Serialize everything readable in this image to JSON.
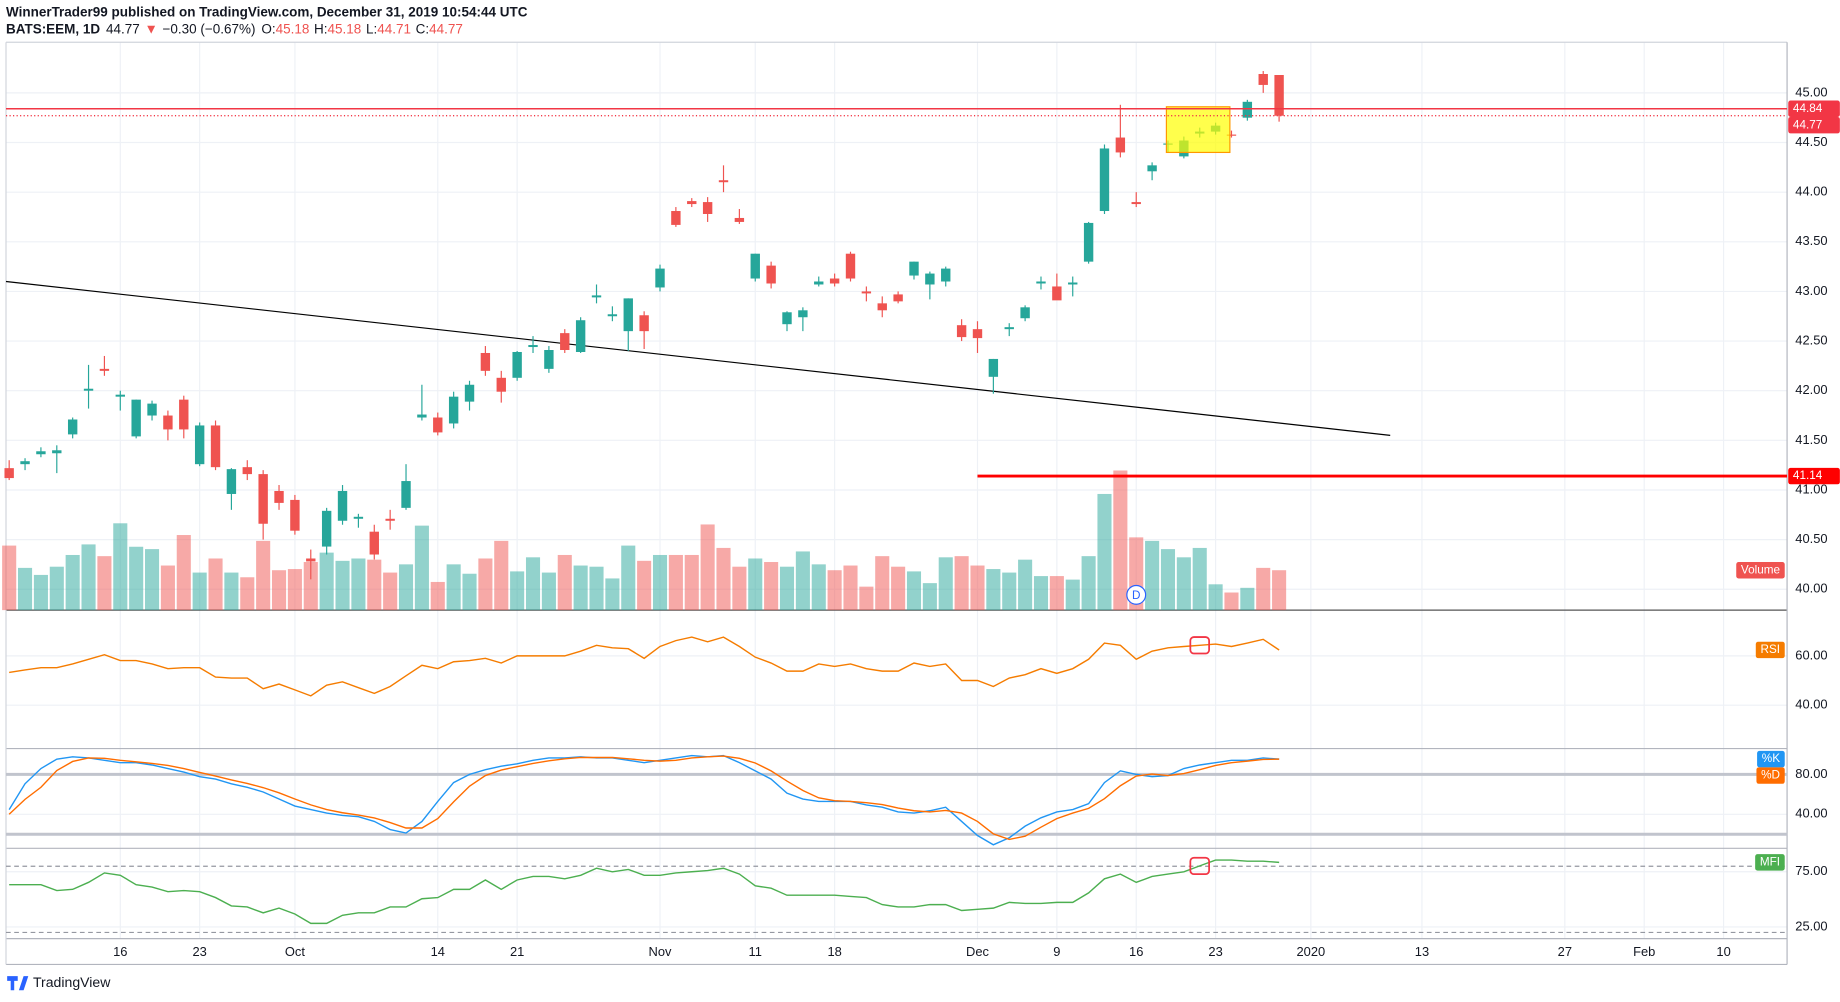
{
  "header": {
    "author": "WinnerTrader99 published on TradingView.com, December 31, 2019 10:54:44 UTC",
    "symbol": "BATS:EEM, 1D",
    "last": "44.77",
    "arrow": "▼",
    "change": "−0.30 (−0.67%)",
    "ohlc": [
      {
        "label": "O:",
        "value": "45.18"
      },
      {
        "label": "H:",
        "value": "45.18"
      },
      {
        "label": "L:",
        "value": "44.71"
      },
      {
        "label": "C:",
        "value": "44.77"
      }
    ]
  },
  "footer": {
    "logo": "TradingView"
  },
  "chart_data": [
    {
      "type": "candlestick",
      "up_color": "#26a69a",
      "down_color": "#ef5350",
      "open": [
        41.22,
        41.26,
        41.36,
        41.37,
        41.56,
        42.0,
        42.22,
        41.94,
        41.54,
        41.75,
        41.75,
        41.91,
        41.26,
        41.65,
        40.96,
        41.23,
        41.16,
        40.99,
        40.9,
        40.31,
        40.43,
        40.69,
        40.71,
        40.58,
        40.71,
        40.82,
        41.73,
        41.73,
        41.67,
        41.89,
        42.38,
        42.13,
        42.13,
        42.44,
        42.22,
        42.58,
        42.39,
        42.94,
        42.75,
        42.6,
        42.76,
        43.04,
        43.81,
        43.91,
        43.9,
        44.12,
        43.74,
        43.13,
        43.26,
        42.67,
        42.74,
        43.07,
        43.13,
        43.38,
        43.0,
        42.88,
        42.97,
        43.16,
        43.07,
        43.1,
        42.66,
        42.62,
        42.14,
        42.62,
        42.73,
        43.08,
        43.05,
        43.07,
        43.3,
        43.81,
        44.55,
        43.9,
        44.21,
        44.48,
        44.36,
        44.59,
        44.61,
        44.58,
        44.75,
        45.19,
        45.18
      ],
      "high": [
        41.3,
        41.32,
        41.43,
        41.45,
        41.73,
        42.26,
        42.35,
        42.0,
        41.91,
        41.9,
        41.8,
        41.95,
        41.68,
        41.7,
        41.22,
        41.3,
        41.2,
        41.05,
        40.95,
        40.4,
        40.82,
        41.05,
        40.76,
        40.65,
        40.8,
        41.26,
        42.06,
        41.78,
        41.99,
        42.1,
        42.45,
        42.2,
        42.4,
        42.55,
        42.45,
        42.62,
        42.74,
        43.07,
        42.85,
        42.93,
        42.8,
        43.27,
        43.85,
        43.94,
        43.95,
        44.27,
        43.83,
        43.38,
        43.3,
        42.8,
        42.84,
        43.15,
        43.18,
        43.4,
        43.05,
        42.95,
        43.0,
        43.3,
        43.2,
        43.25,
        42.72,
        42.7,
        42.32,
        42.68,
        42.86,
        43.15,
        43.18,
        43.15,
        43.7,
        44.48,
        44.88,
        44.0,
        44.3,
        44.52,
        44.56,
        44.65,
        44.7,
        44.62,
        44.93,
        45.22,
        45.18
      ],
      "low": [
        41.1,
        41.2,
        41.33,
        41.17,
        41.52,
        41.82,
        42.15,
        41.8,
        41.52,
        41.7,
        41.5,
        41.52,
        41.24,
        41.2,
        40.8,
        41.1,
        40.5,
        40.8,
        40.55,
        40.1,
        40.35,
        40.65,
        40.62,
        40.3,
        40.6,
        40.8,
        41.7,
        41.55,
        41.62,
        41.8,
        42.15,
        41.88,
        42.1,
        42.38,
        42.18,
        42.38,
        42.38,
        42.88,
        42.7,
        42.4,
        42.42,
        43.0,
        43.65,
        43.85,
        43.7,
        44.0,
        43.68,
        43.1,
        43.03,
        42.6,
        42.6,
        43.05,
        43.05,
        43.1,
        42.9,
        42.74,
        42.88,
        43.12,
        42.92,
        43.05,
        42.5,
        42.38,
        41.97,
        42.55,
        42.7,
        43.02,
        42.92,
        42.95,
        43.28,
        43.78,
        44.35,
        43.85,
        44.12,
        44.4,
        44.34,
        44.55,
        44.58,
        44.55,
        44.72,
        45.0,
        44.71
      ],
      "close": [
        41.12,
        41.29,
        41.39,
        41.4,
        41.71,
        42.02,
        42.2,
        41.96,
        41.91,
        41.87,
        41.61,
        41.61,
        41.65,
        41.23,
        41.21,
        41.16,
        40.66,
        40.87,
        40.59,
        40.28,
        40.79,
        40.99,
        40.73,
        40.35,
        40.69,
        41.09,
        41.76,
        41.58,
        41.94,
        42.06,
        42.2,
        41.99,
        42.39,
        42.46,
        42.41,
        42.41,
        42.71,
        42.96,
        42.77,
        42.93,
        42.6,
        43.23,
        43.67,
        43.88,
        43.78,
        44.1,
        43.7,
        43.38,
        43.08,
        42.79,
        42.81,
        43.1,
        43.08,
        43.13,
        42.98,
        42.81,
        42.9,
        43.3,
        43.18,
        43.23,
        42.54,
        42.53,
        42.32,
        42.64,
        42.84,
        43.1,
        42.91,
        43.09,
        43.69,
        44.44,
        44.4,
        43.88,
        44.27,
        44.49,
        44.52,
        44.61,
        44.67,
        44.57,
        44.91,
        45.08,
        44.77
      ],
      "xlim": [
        -0.2,
        112
      ],
      "xticks": [
        {
          "value": 7,
          "label": "16"
        },
        {
          "value": 12,
          "label": "23"
        },
        {
          "value": 18,
          "label": "Oct"
        },
        {
          "value": 27,
          "label": "14"
        },
        {
          "value": 32,
          "label": "21"
        },
        {
          "value": 41,
          "label": "Nov"
        },
        {
          "value": 47,
          "label": "11"
        },
        {
          "value": 52,
          "label": "18"
        },
        {
          "value": 61,
          "label": "Dec"
        },
        {
          "value": 66,
          "label": "9"
        },
        {
          "value": 71,
          "label": "16"
        },
        {
          "value": 76,
          "label": "23"
        },
        {
          "value": 82,
          "label": "2020"
        },
        {
          "value": 89,
          "label": "13"
        },
        {
          "value": 98,
          "label": "27"
        },
        {
          "value": 103,
          "label": "Feb"
        },
        {
          "value": 108,
          "label": "10"
        }
      ],
      "ylim": [
        39.79,
        45.51
      ],
      "yticks": [
        {
          "value": 40,
          "label": "40.00"
        },
        {
          "value": 40.5,
          "label": "40.50"
        },
        {
          "value": 41,
          "label": "41.00"
        },
        {
          "value": 41.5,
          "label": "41.50"
        },
        {
          "value": 42,
          "label": "42.00"
        },
        {
          "value": 42.5,
          "label": "42.50"
        },
        {
          "value": 43,
          "label": "43.00"
        },
        {
          "value": 43.5,
          "label": "43.50"
        },
        {
          "value": 44,
          "label": "44.00"
        },
        {
          "value": 44.5,
          "label": "44.50"
        },
        {
          "value": 45,
          "label": "45.00"
        }
      ],
      "hlines": [
        {
          "value": 44.84,
          "color": "#f23645",
          "style": "solid"
        },
        {
          "value": 44.77,
          "color": "#f23645",
          "style": "dotted"
        },
        {
          "value": 41.14,
          "color": "#ff0000",
          "style": "thick",
          "from": 61
        }
      ],
      "trendline": {
        "x": [
          -0.2,
          87
        ],
        "y": [
          43.1,
          41.55
        ],
        "color": "#000000"
      },
      "box": {
        "x": [
          72.9,
          76.9
        ],
        "y": [
          44.86,
          44.4
        ],
        "fill": "#ffff00",
        "stroke": "#ff9800"
      },
      "events": [
        {
          "x": 71,
          "label": "D"
        }
      ]
    },
    {
      "type": "bar",
      "up_color": "#26a69a",
      "down_color": "#ef5350",
      "ylim": [
        0,
        400
      ],
      "series": [
        {
          "name": "Volume",
          "values": [
            55,
            36,
            30,
            37,
            47,
            56,
            46,
            74,
            54,
            52,
            38,
            64,
            32,
            44,
            32,
            28,
            59,
            34,
            35,
            41,
            49,
            42,
            44,
            43,
            32,
            39,
            72,
            24,
            39,
            31,
            44,
            59,
            33,
            45,
            32,
            47,
            38,
            37,
            27,
            55,
            42,
            47,
            47,
            47,
            73,
            53,
            37,
            44,
            41,
            37,
            50,
            39,
            34,
            38,
            20,
            46,
            37,
            33,
            23,
            45,
            46,
            38,
            35,
            32,
            43,
            29,
            29,
            26,
            46,
            99,
            119,
            62,
            59,
            52,
            45,
            53,
            22,
            15,
            19,
            36,
            34
          ]
        }
      ]
    },
    {
      "type": "line",
      "ylim": [
        22.9,
        77.6
      ],
      "yticks": [
        {
          "value": 60,
          "label": "60.00"
        },
        {
          "value": 40,
          "label": "40.00"
        }
      ],
      "series": [
        {
          "name": "RSI",
          "color": "#f57c00",
          "values": [
            53.3,
            54.3,
            55.2,
            55.2,
            56.7,
            58.6,
            60.5,
            58.1,
            58.1,
            56.7,
            54.8,
            55.2,
            55.2,
            51.4,
            51.0,
            51.0,
            46.7,
            48.6,
            46.2,
            43.8,
            48.1,
            49.5,
            47.1,
            44.8,
            47.6,
            51.9,
            56.2,
            54.8,
            57.6,
            58.1,
            59.0,
            57.1,
            60,
            60,
            60,
            60,
            61.9,
            64.3,
            63.3,
            62.9,
            59.0,
            63.8,
            66.2,
            67.6,
            65.7,
            67.6,
            63.8,
            59.5,
            57.1,
            53.8,
            53.8,
            56.7,
            55.7,
            56.7,
            54.8,
            53.8,
            53.8,
            57.1,
            55.7,
            56.7,
            50,
            50,
            47.6,
            51,
            52.4,
            54.8,
            52.9,
            54.8,
            58.6,
            65.2,
            64.3,
            58.6,
            61.9,
            63.3,
            63.8,
            64.3,
            64.8,
            63.8,
            65.2,
            66.7,
            62.4
          ]
        }
      ],
      "marker": {
        "x": 75,
        "y": 64.3,
        "color": "#f23645"
      }
    },
    {
      "type": "line",
      "ylim": [
        7.1,
        104.7
      ],
      "yticks": [
        {
          "value": 80,
          "label": "80.00"
        },
        {
          "value": 40,
          "label": "40.00"
        }
      ],
      "bands": [
        80,
        20
      ],
      "series": [
        {
          "name": "%K",
          "color": "#2196f3",
          "values": [
            44.7,
            70.6,
            85.9,
            95.3,
            97.6,
            96.5,
            94.1,
            91.8,
            91.8,
            89.4,
            85.9,
            82.4,
            77.6,
            75.3,
            70.6,
            67.1,
            62.4,
            55.3,
            48.2,
            44.7,
            41.2,
            38.8,
            37.6,
            32.9,
            24.7,
            21.2,
            32.9,
            52.9,
            71.8,
            80,
            84.7,
            88.2,
            90.6,
            94.1,
            96.5,
            96.5,
            97.6,
            96.5,
            96.5,
            94.1,
            91.8,
            94.1,
            96.5,
            98.8,
            97.6,
            98.8,
            91.8,
            83.5,
            75.3,
            61.2,
            55.3,
            52.9,
            52.9,
            52.9,
            49.4,
            47.1,
            42.4,
            41.2,
            43.5,
            47.1,
            32.9,
            18.8,
            9.4,
            16.5,
            28.2,
            36.5,
            42.4,
            44.7,
            50.6,
            71.8,
            83.5,
            80,
            77.6,
            78.8,
            85.9,
            89.4,
            91.8,
            94.1,
            94.1,
            96.5,
            95.3
          ]
        },
        {
          "name": "%D",
          "color": "#ff6d00",
          "values": [
            40,
            55,
            67.1,
            83.9,
            92.9,
            96.5,
            96.1,
            94.1,
            92.6,
            91,
            89,
            85.9,
            82,
            78.4,
            74.5,
            71,
            66.7,
            61.6,
            55.3,
            49.4,
            44.7,
            41.6,
            39.2,
            36.4,
            31.7,
            26.3,
            26.3,
            35.7,
            52.5,
            68.2,
            78.8,
            84.3,
            87.8,
            91,
            93.7,
            95.7,
            96.9,
            96.9,
            96.9,
            95.7,
            94.1,
            93.3,
            94.1,
            96.5,
            97.6,
            98.4,
            96.1,
            91.4,
            83.5,
            73.3,
            63.9,
            56.5,
            53.7,
            52.9,
            51.7,
            49.8,
            46.3,
            43.6,
            42.4,
            43.9,
            41.2,
            32.9,
            20.4,
            14.9,
            18,
            27.1,
            35.7,
            41.2,
            45.9,
            55.7,
            68.6,
            78.4,
            80.4,
            78.8,
            80.8,
            84.7,
            89,
            91.8,
            93.3,
            94.9,
            95.3
          ]
        }
      ]
    },
    {
      "type": "line",
      "ylim": [
        14.4,
        95.2
      ],
      "yticks": [
        {
          "value": 75,
          "label": "75.00"
        },
        {
          "value": 25,
          "label": "25.00"
        }
      ],
      "dashed_bands": [
        80,
        20
      ],
      "series": [
        {
          "name": "MFI",
          "color": "#4caf50",
          "values": [
            63.3,
            63.3,
            63.3,
            58,
            59,
            65.4,
            73.9,
            71.8,
            63.3,
            61.2,
            56.9,
            58,
            56.9,
            51.6,
            44.1,
            43.1,
            37.8,
            42,
            36.7,
            28.2,
            28.2,
            35.6,
            37.8,
            37.8,
            43.1,
            43.1,
            50.5,
            51.6,
            59,
            59,
            67.6,
            59,
            67.6,
            70.7,
            70.7,
            68.6,
            71.8,
            78.2,
            75,
            77.1,
            71.8,
            71.8,
            73.9,
            75,
            76.1,
            78.2,
            72.9,
            62.2,
            60.1,
            53.7,
            53.7,
            53.7,
            53.7,
            52.7,
            51.6,
            45.2,
            43.1,
            43.1,
            45.2,
            45.2,
            39.9,
            41,
            42,
            47.3,
            46.3,
            46.3,
            47.3,
            47.3,
            55.9,
            68.6,
            72.9,
            65.4,
            70.7,
            72.9,
            75,
            80.3,
            85.6,
            85.6,
            84.6,
            84.6,
            83.5
          ]
        }
      ],
      "marker": {
        "x": 75,
        "y": 80.3,
        "color": "#f23645"
      }
    }
  ]
}
